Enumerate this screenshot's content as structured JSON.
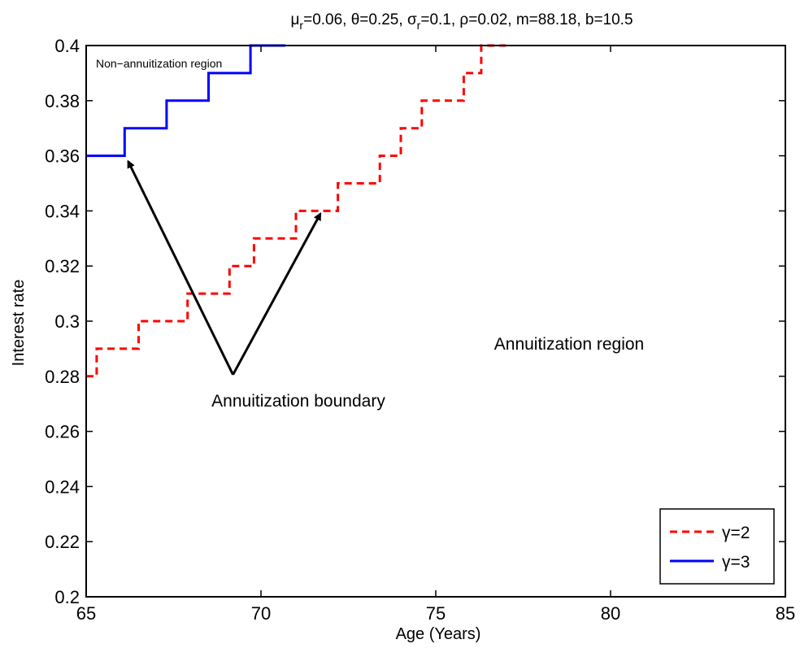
{
  "chart_data": {
    "type": "line",
    "title_parts": {
      "mu": "μ",
      "mu_sub": "r",
      "mu_rest": "=0.06, θ=0.25, ",
      "sigma": "σ",
      "sigma_sub": "r",
      "sigma_rest": "=0.1, ρ=0.02, m=88.18, b=10.5"
    },
    "xlabel": "Age (Years)",
    "ylabel": "Interest rate",
    "xlim": [
      65,
      85
    ],
    "ylim": [
      0.2,
      0.4
    ],
    "xticks": [
      "65",
      "70",
      "75",
      "80",
      "85"
    ],
    "yticks": [
      "0.2",
      "0.22",
      "0.24",
      "0.26",
      "0.28",
      "0.3",
      "0.32",
      "0.34",
      "0.36",
      "0.38",
      "0.4"
    ],
    "grid": false,
    "legend_position": "bottom-right",
    "series": [
      {
        "name": "γ=2",
        "color": "#ff0000",
        "style": "dashed",
        "x": [
          65.0,
          65.3,
          65.3,
          66.5,
          66.5,
          67.2,
          67.2,
          67.9,
          67.9,
          68.5,
          68.5,
          69.1,
          69.1,
          69.8,
          69.8,
          70.4,
          70.4,
          71.0,
          71.0,
          71.6,
          71.6,
          72.2,
          72.2,
          72.8,
          72.8,
          73.4,
          73.4,
          74.0,
          74.0,
          74.6,
          74.6,
          75.2,
          75.2,
          75.8,
          75.8,
          76.3,
          76.3,
          77.0
        ],
        "y": [
          0.28,
          0.28,
          0.29,
          0.29,
          0.3,
          0.3,
          0.3,
          0.3,
          0.31,
          0.31,
          0.31,
          0.31,
          0.32,
          0.32,
          0.33,
          0.33,
          0.33,
          0.33,
          0.34,
          0.34,
          0.34,
          0.34,
          0.35,
          0.35,
          0.35,
          0.35,
          0.36,
          0.36,
          0.37,
          0.37,
          0.38,
          0.38,
          0.38,
          0.38,
          0.39,
          0.39,
          0.4,
          0.4
        ]
      },
      {
        "name": "γ=3",
        "color": "#0000ff",
        "style": "solid",
        "x": [
          65.0,
          66.1,
          66.1,
          67.3,
          67.3,
          68.5,
          68.5,
          69.7,
          69.7,
          70.7
        ],
        "y": [
          0.36,
          0.36,
          0.37,
          0.37,
          0.38,
          0.38,
          0.39,
          0.39,
          0.4,
          0.4
        ]
      }
    ],
    "annotations": {
      "non_annuitization": "Non−annuitization region",
      "annuitization_region": "Annuitization region",
      "boundary": "Annuitization boundary"
    },
    "arrows": [
      {
        "from": [
          69.2,
          0.28
        ],
        "to": [
          66.2,
          0.358
        ]
      },
      {
        "from": [
          69.2,
          0.28
        ],
        "to": [
          71.7,
          0.339
        ]
      }
    ]
  }
}
